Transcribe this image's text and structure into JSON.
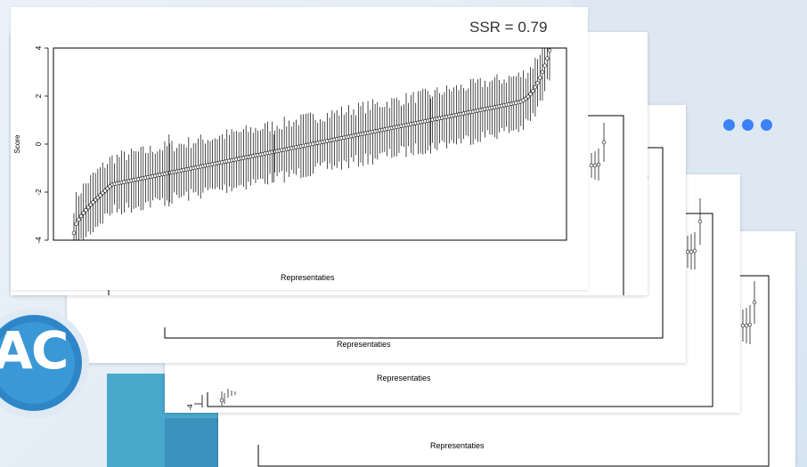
{
  "colors": {
    "accent": "#3b82f6",
    "logo_blue": "#2e86c8",
    "teal": "#3ea6c8"
  },
  "ssr_label": "SSR = 0.79",
  "dots": [
    "dot",
    "dot",
    "dot"
  ],
  "logo": {
    "text": "AC"
  },
  "chart_data": [
    {
      "type": "errorbar",
      "title": "",
      "ylabel": "Score",
      "xlabel": "Representaties",
      "ylim": [
        -4,
        4
      ],
      "yticks": [
        -4,
        -2,
        0,
        2,
        4
      ],
      "n_points": 200,
      "min_estimate": -3.7,
      "max_estimate": 3.9,
      "interval_halfwidth": 1.1,
      "marker": "open-circle",
      "grid": false
    },
    {
      "type": "errorbar",
      "xlabel": "Representaties"
    },
    {
      "type": "errorbar",
      "xlabel": "Representaties"
    },
    {
      "type": "errorbar",
      "xlabel": "Representaties",
      "yticks": [
        -4
      ]
    }
  ]
}
